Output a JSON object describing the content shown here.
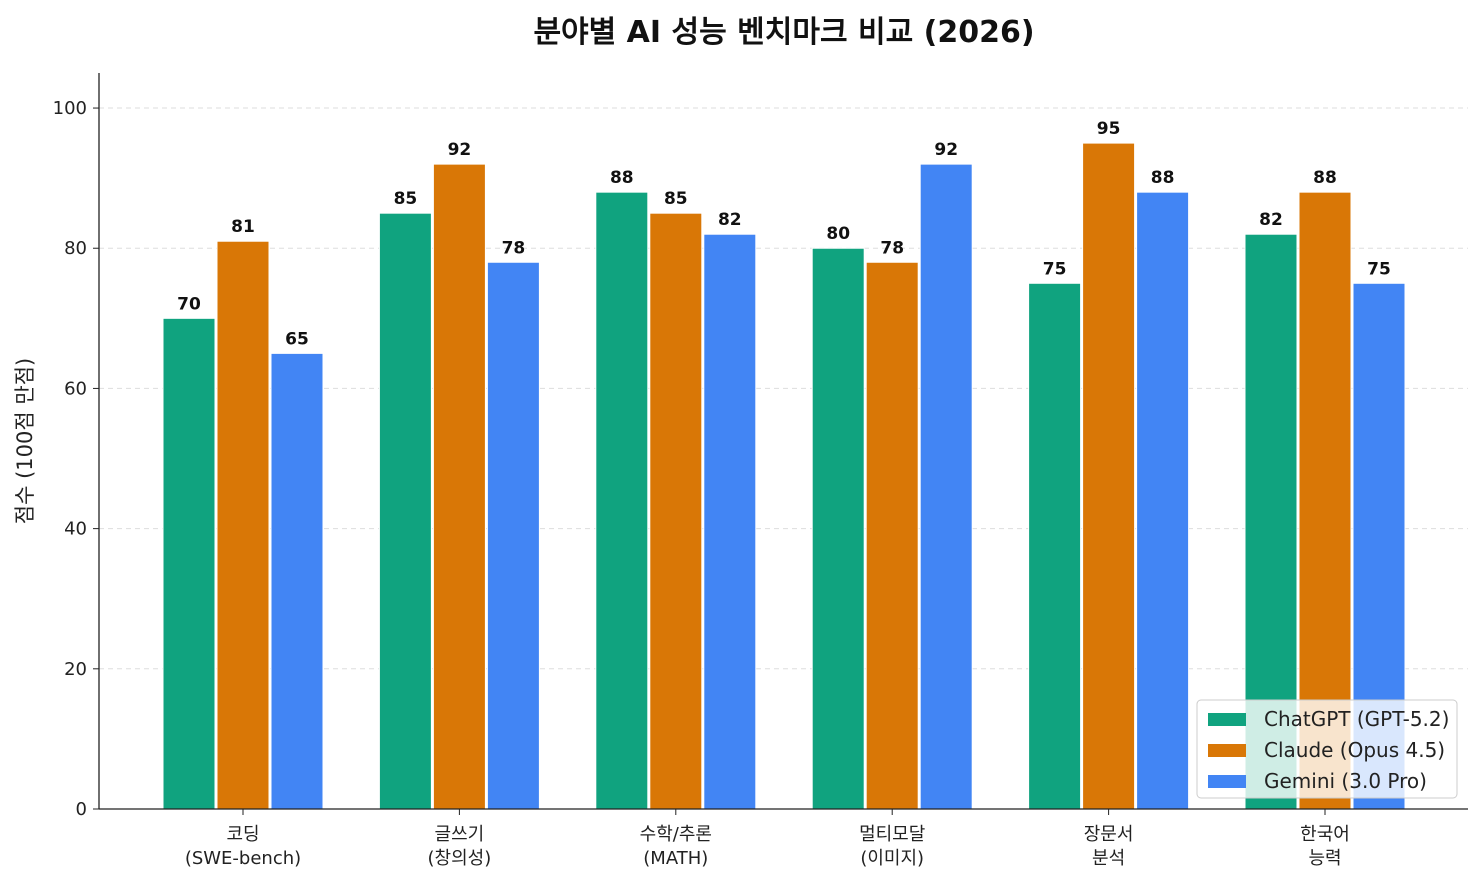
{
  "chart_data": {
    "type": "bar",
    "title": "분야별 AI 성능 벤치마크 비교 (2026)",
    "xlabel": "",
    "ylabel": "점수 (100점 만점)",
    "ylim": [
      0,
      105
    ],
    "yticks": [
      0,
      20,
      40,
      60,
      80,
      100
    ],
    "grid": "y-dashed",
    "legend_position": "bottom-right",
    "categories": [
      [
        "코딩",
        "(SWE-bench)"
      ],
      [
        "글쓰기",
        "(창의성)"
      ],
      [
        "수학/추론",
        "(MATH)"
      ],
      [
        "멀티모달",
        "(이미지)"
      ],
      [
        "장문서",
        "분석"
      ],
      [
        "한국어",
        "능력"
      ]
    ],
    "series": [
      {
        "name": "ChatGPT (GPT-5.2)",
        "color": "#10a37f",
        "values": [
          70,
          85,
          88,
          80,
          75,
          82
        ]
      },
      {
        "name": "Claude (Opus 4.5)",
        "color": "#d97706",
        "values": [
          81,
          92,
          85,
          78,
          95,
          88
        ]
      },
      {
        "name": "Gemini (3.0 Pro)",
        "color": "#4285f4",
        "values": [
          65,
          78,
          82,
          92,
          88,
          75
        ]
      }
    ]
  }
}
